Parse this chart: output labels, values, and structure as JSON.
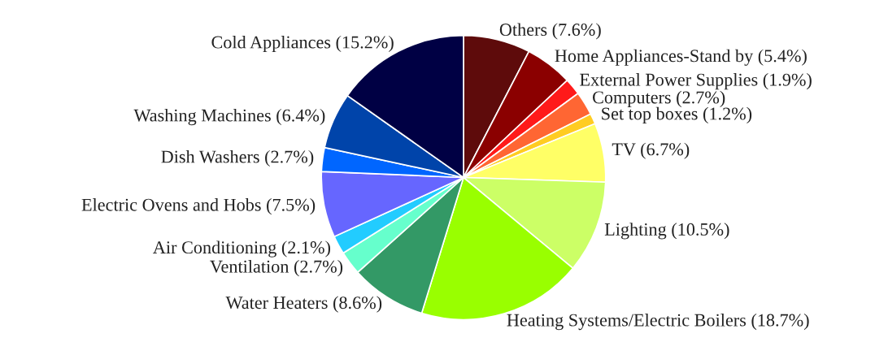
{
  "chart_data": {
    "type": "pie",
    "categories": [
      "Others",
      "Home Appliances-Stand by",
      "External Power Supplies",
      "Computers",
      "Set top boxes",
      "TV",
      "Lighting",
      "Heating Systems/Electric Boilers",
      "Water Heaters",
      "Ventilation",
      "Air Conditioning",
      "Electric Ovens and Hobs",
      "Dish Washers",
      "Washing Machines",
      "Cold Appliances"
    ],
    "values": [
      7.6,
      5.4,
      1.9,
      2.7,
      1.2,
      6.7,
      10.5,
      18.7,
      8.6,
      2.7,
      2.1,
      7.5,
      2.7,
      6.4,
      15.2
    ],
    "value_labels": [
      "(7.6%)",
      "(5.4%)",
      "(1.9%)",
      "(2.7%)",
      "(1.2%)",
      "(6.7%)",
      "(10.5%)",
      "(18.7%)",
      "(8.6%)",
      "(2.7%)",
      "(2.1%)",
      "(7.5%)",
      "(2.7%)",
      "(6.4%)",
      "(15.2%)"
    ],
    "colors": [
      "#5e0b0b",
      "#8b0000",
      "#ff1a1a",
      "#ff6633",
      "#ffcc22",
      "#ffff66",
      "#ccff66",
      "#99ff00",
      "#339966",
      "#66ffcc",
      "#22ccff",
      "#6666ff",
      "#0066ff",
      "#0044aa",
      "#000044"
    ]
  }
}
